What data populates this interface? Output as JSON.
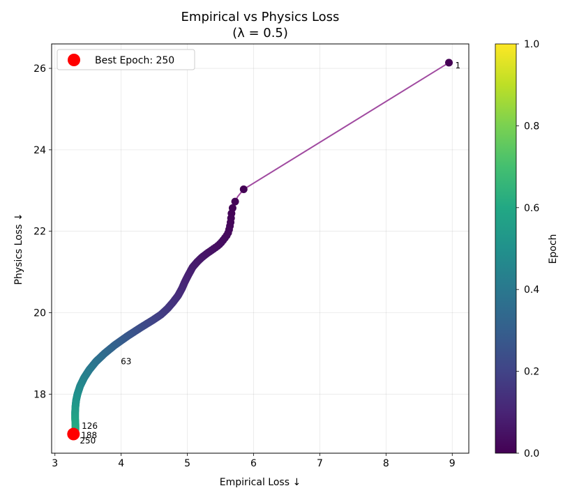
{
  "chart_data": {
    "type": "scatter",
    "title": "Empirical vs Physics Loss",
    "subtitle": "(λ = 0.5)",
    "xlabel": "Empirical Loss ↓",
    "ylabel": "Physics Loss ↓",
    "xlim": [
      2.95,
      9.25
    ],
    "ylim": [
      16.55,
      26.6
    ],
    "xticks": [
      3,
      4,
      5,
      6,
      7,
      8,
      9
    ],
    "yticks": [
      18,
      20,
      22,
      24,
      26
    ],
    "grid": true,
    "legend": {
      "position": "top-left",
      "entries": [
        "Best Epoch: 250"
      ]
    },
    "colorbar": {
      "label": "Epoch",
      "range": [
        0,
        1
      ],
      "ticks": [
        "0.0",
        "0.2",
        "0.4",
        "0.6",
        "0.8",
        "1.0"
      ],
      "colormap": "viridis"
    },
    "trajectory": {
      "color": "#a04aa0",
      "points": [
        [
          8.95,
          26.14
        ],
        [
          5.85,
          23.03
        ],
        [
          5.76,
          22.85
        ],
        [
          5.7,
          22.66
        ],
        [
          5.67,
          22.5
        ],
        [
          5.66,
          22.33
        ],
        [
          5.65,
          22.18
        ],
        [
          5.63,
          22.04
        ],
        [
          5.61,
          21.93
        ],
        [
          5.55,
          21.8
        ],
        [
          5.5,
          21.7
        ],
        [
          5.45,
          21.63
        ],
        [
          5.38,
          21.55
        ],
        [
          5.3,
          21.46
        ],
        [
          5.22,
          21.36
        ],
        [
          5.15,
          21.25
        ],
        [
          5.08,
          21.12
        ],
        [
          5.04,
          21.0
        ],
        [
          5.0,
          20.88
        ],
        [
          4.96,
          20.75
        ],
        [
          4.92,
          20.6
        ],
        [
          4.86,
          20.42
        ],
        [
          4.78,
          20.25
        ],
        [
          4.7,
          20.1
        ],
        [
          4.6,
          19.95
        ],
        [
          4.48,
          19.82
        ],
        [
          4.3,
          19.64
        ],
        [
          4.1,
          19.43
        ],
        [
          3.9,
          19.2
        ],
        [
          3.75,
          19.0
        ],
        [
          3.62,
          18.8
        ],
        [
          3.52,
          18.6
        ],
        [
          3.44,
          18.4
        ],
        [
          3.38,
          18.2
        ],
        [
          3.34,
          18.0
        ],
        [
          3.32,
          17.85
        ],
        [
          3.31,
          17.7
        ],
        [
          3.305,
          17.55
        ],
        [
          3.305,
          17.4
        ],
        [
          3.31,
          17.25
        ],
        [
          3.31,
          17.12
        ],
        [
          3.3,
          17.05
        ]
      ]
    },
    "epoch_labels": [
      {
        "text": "1",
        "x": 8.95,
        "y": 26.14
      },
      {
        "text": "63",
        "x": 3.9,
        "y": 18.8
      },
      {
        "text": "126",
        "x": 3.31,
        "y": 17.15
      },
      {
        "text": "188",
        "x": 3.3,
        "y": 17.02
      },
      {
        "text": "250",
        "x": 3.28,
        "y": 16.96
      }
    ],
    "best_point": {
      "x": 3.28,
      "y": 17.02,
      "color": "#ff0000",
      "label": "Best Epoch: 250"
    }
  }
}
